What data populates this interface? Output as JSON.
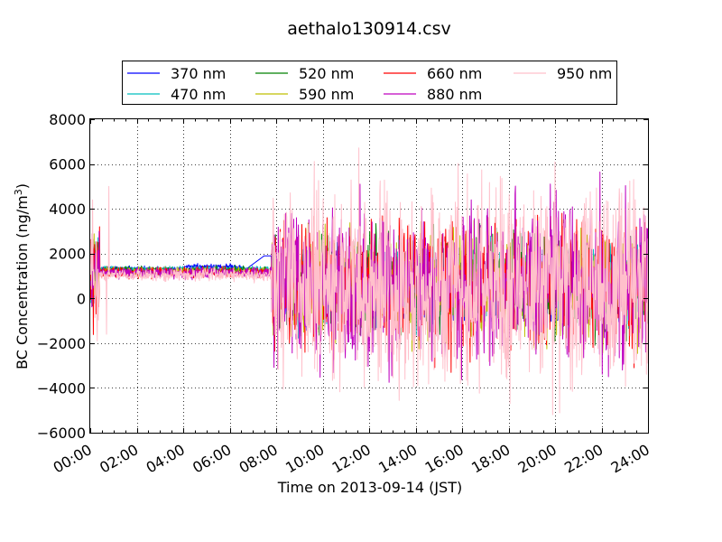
{
  "chart_data": {
    "type": "line",
    "title": "aethalo130914.csv",
    "xlabel": "Time on 2013-09-14 (JST)",
    "ylabel_main": "BC Concentration (ng/m",
    "ylabel_sup": "3",
    "ylabel_close": ")",
    "xlim": [
      "00:00",
      "24:00"
    ],
    "ylim": [
      -6000,
      8000
    ],
    "x_ticks": [
      "00:00",
      "02:00",
      "04:00",
      "06:00",
      "08:00",
      "10:00",
      "12:00",
      "14:00",
      "16:00",
      "18:00",
      "20:00",
      "22:00",
      "24:00"
    ],
    "y_ticks": [
      -6000,
      -4000,
      -2000,
      0,
      2000,
      4000,
      6000,
      8000
    ],
    "grid": true,
    "legend_position": "top",
    "series": [
      {
        "name": "370 nm",
        "color": "#0000ff"
      },
      {
        "name": "470 nm",
        "color": "#00bfbf"
      },
      {
        "name": "520 nm",
        "color": "#008000"
      },
      {
        "name": "590 nm",
        "color": "#bfbf00"
      },
      {
        "name": "660 nm",
        "color": "#ff0000"
      },
      {
        "name": "880 nm",
        "color": "#bf00bf"
      },
      {
        "name": "950 nm",
        "color": "#ffc0cb"
      }
    ],
    "features": {
      "stable_window_hours": [
        0.4,
        7.8
      ],
      "stable_levels": [
        1300,
        1300,
        1250,
        1200,
        1150,
        1150,
        1050
      ],
      "bump_370_hours": [
        6.7,
        7.8
      ],
      "bump_370_peak": 1900,
      "noisy_amplitudes": [
        700,
        850,
        1000,
        1150,
        1300,
        1600,
        2100
      ],
      "spikes": [
        {
          "series": 6,
          "hour": 0.1,
          "value": 4400
        },
        {
          "series": 6,
          "hour": 0.3,
          "value": -1900
        },
        {
          "series": 4,
          "hour": 0.4,
          "value": 3200
        },
        {
          "series": 6,
          "hour": 0.8,
          "value": 5000
        },
        {
          "series": 6,
          "hour": 0.7,
          "value": -1600
        },
        {
          "series": 5,
          "hour": 8.4,
          "value": 3800
        },
        {
          "series": 6,
          "hour": 8.9,
          "value": -2700
        },
        {
          "series": 4,
          "hour": 9.1,
          "value": 3300
        },
        {
          "series": 4,
          "hour": 9.6,
          "value": -1700
        },
        {
          "series": 6,
          "hour": 10.8,
          "value": 4200
        },
        {
          "series": 6,
          "hour": 11.0,
          "value": -2300
        },
        {
          "series": 5,
          "hour": 11.6,
          "value": 5100
        },
        {
          "series": 5,
          "hour": 11.5,
          "value": -2300
        },
        {
          "series": 6,
          "hour": 12.1,
          "value": -2500
        },
        {
          "series": 6,
          "hour": 13.4,
          "value": 3500
        },
        {
          "series": 6,
          "hour": 13.2,
          "value": -2800
        },
        {
          "series": 6,
          "hour": 14.1,
          "value": -3900
        },
        {
          "series": 5,
          "hour": 16.4,
          "value": 4400
        },
        {
          "series": 5,
          "hour": 16.7,
          "value": -2500
        },
        {
          "series": 5,
          "hour": 17.1,
          "value": 4000
        },
        {
          "series": 5,
          "hour": 17.2,
          "value": -3000
        },
        {
          "series": 5,
          "hour": 18.0,
          "value": -1800
        },
        {
          "series": 4,
          "hour": 18.5,
          "value": 3000
        },
        {
          "series": 4,
          "hour": 19.1,
          "value": -2100
        },
        {
          "series": 6,
          "hour": 19.6,
          "value": 4000
        },
        {
          "series": 6,
          "hour": 19.9,
          "value": -5200
        },
        {
          "series": 6,
          "hour": 20.0,
          "value": 6100
        },
        {
          "series": 4,
          "hour": 20.3,
          "value": 3800
        },
        {
          "series": 4,
          "hour": 20.6,
          "value": -2400
        },
        {
          "series": 5,
          "hour": 21.1,
          "value": -2000
        },
        {
          "series": 5,
          "hour": 22.0,
          "value": 3000
        },
        {
          "series": 5,
          "hour": 22.3,
          "value": -3500
        },
        {
          "series": 5,
          "hour": 22.9,
          "value": -3200
        },
        {
          "series": 6,
          "hour": 23.0,
          "value": 4000
        },
        {
          "series": 6,
          "hour": 23.4,
          "value": -2900
        },
        {
          "series": 6,
          "hour": 23.8,
          "value": 3600
        },
        {
          "series": 5,
          "hour": 23.9,
          "value": -2400
        }
      ]
    }
  }
}
